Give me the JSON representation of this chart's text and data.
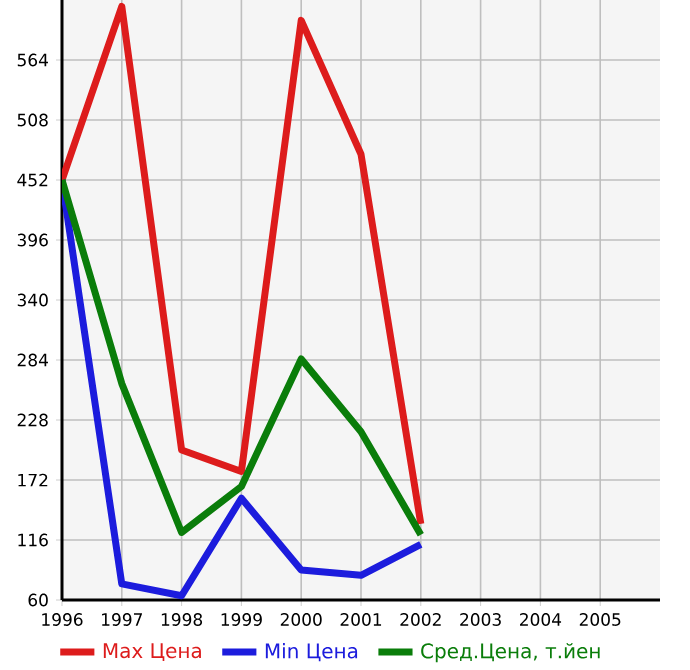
{
  "chart_data": {
    "type": "line",
    "x": [
      1996,
      1997,
      1998,
      1999,
      2000,
      2001,
      2002
    ],
    "series": [
      {
        "name": "Max Цена",
        "color": "#dd1c1c",
        "values": [
          452,
          614,
          200,
          180,
          601,
          476,
          131
        ]
      },
      {
        "name": "Min Цена",
        "color": "#1c1cdd",
        "values": [
          452,
          75,
          64,
          155,
          88,
          83,
          112
        ]
      },
      {
        "name": "Сред.Цена, т.йен",
        "color": "#0a7d0a",
        "values": [
          452,
          262,
          123,
          166,
          285,
          217,
          121
        ]
      }
    ],
    "xlim": [
      1996,
      2006
    ],
    "ylim": [
      60,
      620
    ],
    "xticks": [
      1996,
      1997,
      1998,
      1999,
      2000,
      2001,
      2002,
      2003,
      2004,
      2005
    ],
    "yticks": [
      60,
      116,
      172,
      228,
      284,
      340,
      396,
      452,
      508,
      564
    ],
    "grid": true,
    "legend": "bottom",
    "marker": "none",
    "line_style": "solid"
  }
}
